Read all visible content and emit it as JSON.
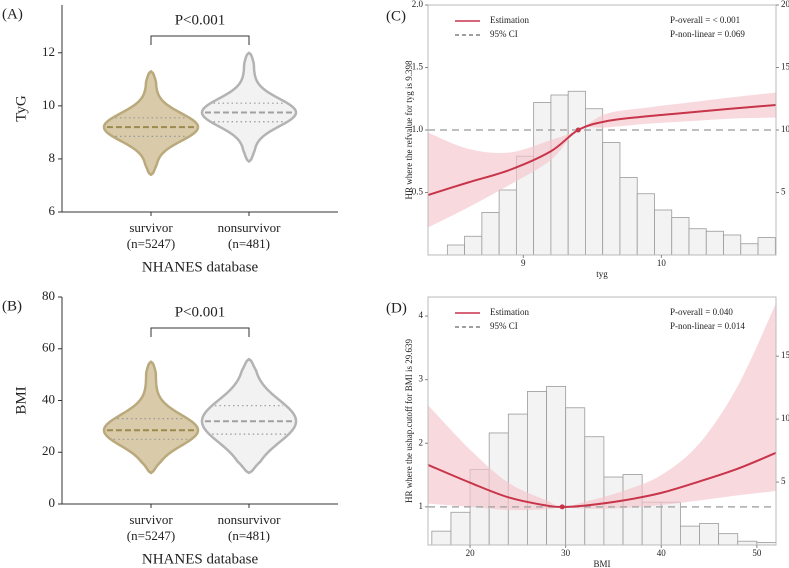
{
  "chart_data": [
    {
      "type": "violin",
      "panel_label": "(A)",
      "ylabel": "TyG",
      "xlabel": "NHANES database",
      "annotation": "P<0.001",
      "categories": [
        "survivor",
        "nonsurvivor"
      ],
      "category_sublabels": [
        "(n=5247)",
        "(n=481)"
      ],
      "ylim": [
        6,
        13.8
      ],
      "yticks": [
        6,
        8,
        10,
        12
      ],
      "stats": {
        "min": [
          7.4,
          7.9
        ],
        "q1": [
          8.85,
          9.4
        ],
        "median": [
          9.2,
          9.75
        ],
        "q3": [
          9.55,
          10.1
        ],
        "max": [
          11.3,
          12.0
        ]
      },
      "colors": [
        "#d9cba9",
        "#f2f2f2"
      ],
      "edge_colors": [
        "#b9a97c",
        "#b3b3b3"
      ],
      "median_colors": [
        "#9a8a4e",
        "#a0a0a0"
      ]
    },
    {
      "type": "violin",
      "panel_label": "(B)",
      "ylabel": "BMI",
      "xlabel": "NHANES database",
      "annotation": "P<0.001",
      "categories": [
        "survivor",
        "nonsurvivor"
      ],
      "category_sublabels": [
        "(n=5247)",
        "(n=481)"
      ],
      "ylim": [
        0,
        80
      ],
      "yticks": [
        0,
        20,
        40,
        60,
        80
      ],
      "stats": {
        "min": [
          12,
          12
        ],
        "q1": [
          25,
          27
        ],
        "median": [
          28.5,
          32
        ],
        "q3": [
          33,
          38
        ],
        "max": [
          55,
          56
        ]
      },
      "colors": [
        "#d9cba9",
        "#f2f2f2"
      ],
      "edge_colors": [
        "#b9a97c",
        "#b3b3b3"
      ],
      "median_colors": [
        "#9a8a4e",
        "#a0a0a0"
      ]
    },
    {
      "type": "line",
      "panel_label": "(C)",
      "ylabel": "HR where the refvalue for tyg is 9.398",
      "xlabel": "tyg",
      "xlim": [
        8.31,
        10.83
      ],
      "xticks": [
        9,
        10
      ],
      "ylim": [
        0,
        2
      ],
      "yticks": [
        0.5,
        {
          "value": 1,
          "label": "1.0"
        },
        1.5,
        {
          "value": 2,
          "label": "2.0"
        }
      ],
      "y2lim": [
        0,
        20
      ],
      "y2ticks": [
        5,
        10,
        15,
        20
      ],
      "x": [
        8.31,
        8.6,
        8.9,
        9.2,
        9.398,
        9.6,
        9.9,
        10.2,
        10.5,
        10.83
      ],
      "series": [
        {
          "name": "Estimation",
          "color": "#c8344a",
          "values": [
            0.48,
            0.58,
            0.68,
            0.83,
            1.0,
            1.07,
            1.11,
            1.14,
            1.17,
            1.2
          ]
        }
      ],
      "ci": {
        "name": "95% CI",
        "color": "#f4c6cd",
        "lower": [
          0.22,
          0.38,
          0.56,
          0.76,
          1.0,
          1.02,
          1.05,
          1.07,
          1.09,
          1.1
        ],
        "upper": [
          0.98,
          0.85,
          0.82,
          0.92,
          1.0,
          1.13,
          1.18,
          1.22,
          1.26,
          1.3
        ]
      },
      "reference_y": 1,
      "ref_point": [
        9.398,
        1
      ],
      "histogram": {
        "axis": "y2",
        "bins": [
          8.45,
          8.575,
          8.7,
          8.825,
          8.95,
          9.075,
          9.2,
          9.325,
          9.45,
          9.575,
          9.7,
          9.825,
          9.95,
          10.075,
          10.2,
          10.325,
          10.45,
          10.575,
          10.7,
          10.825
        ],
        "counts": [
          0.8,
          1.5,
          3.4,
          5.2,
          7.9,
          12.2,
          12.8,
          13.1,
          11.7,
          9.0,
          6.2,
          4.9,
          3.6,
          3.0,
          2.1,
          1.9,
          1.6,
          0.9,
          1.4
        ]
      },
      "annotations": [
        "P-overall = < 0.001",
        "P-non-linear = 0.069"
      ]
    },
    {
      "type": "line",
      "panel_label": "(D)",
      "ylabel": "HR where the ushap.cutoff for BMI is 29.639",
      "xlabel": "BMI",
      "xlim": [
        15.6,
        52
      ],
      "xticks": [
        20,
        30,
        40,
        50
      ],
      "ylim": [
        0.4,
        4.3
      ],
      "yticks": [
        1,
        2,
        3,
        4
      ],
      "y2lim": [
        0,
        19.7
      ],
      "y2ticks": [
        5,
        10,
        15
      ],
      "x": [
        15.6,
        20,
        24,
        28,
        29.639,
        32,
        36,
        40,
        44,
        48,
        52
      ],
      "series": [
        {
          "name": "Estimation",
          "color": "#c8344a",
          "values": [
            1.66,
            1.38,
            1.15,
            1.02,
            1.0,
            1.02,
            1.1,
            1.22,
            1.4,
            1.6,
            1.85
          ]
        }
      ],
      "ci": {
        "name": "95% CI",
        "color": "#f4c6cd",
        "lower": [
          1.05,
          1.0,
          0.95,
          0.96,
          1.0,
          0.97,
          0.98,
          1.03,
          1.1,
          1.18,
          1.25
        ],
        "upper": [
          2.6,
          1.9,
          1.38,
          1.1,
          1.0,
          1.08,
          1.25,
          1.5,
          2.0,
          2.9,
          4.2
        ]
      },
      "reference_y": 1,
      "ref_point": [
        29.639,
        1
      ],
      "histogram": {
        "axis": "y2",
        "bins": [
          16,
          18,
          20,
          22,
          24,
          26,
          28,
          30,
          32,
          34,
          36,
          38,
          40,
          42,
          44,
          46,
          48,
          50,
          52
        ],
        "counts": [
          1.1,
          2.6,
          6.0,
          8.9,
          10.4,
          12.2,
          12.6,
          10.9,
          8.6,
          5.4,
          5.6,
          3.4,
          3.4,
          1.5,
          1.7,
          0.9,
          0.3,
          0.2
        ]
      },
      "annotations": [
        "P-overall = 0.040",
        "P-non-linear = 0.014"
      ]
    }
  ]
}
